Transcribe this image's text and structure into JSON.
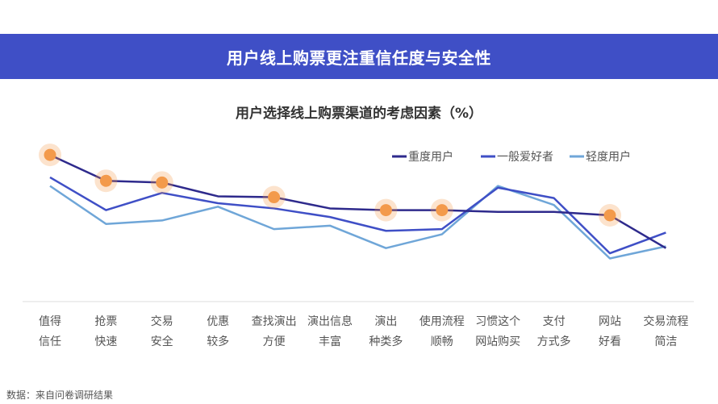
{
  "banner": {
    "title": "用户线上购票更注重信任度与安全性"
  },
  "source_note": "数据：来自问卷调研结果",
  "chart_data": {
    "type": "line",
    "title": "用户选择线上购票渠道的考虑因素（%）",
    "xlabel": "",
    "ylabel": "",
    "ylim": [
      0,
      100
    ],
    "grid": false,
    "legend": "top-right",
    "categories": [
      [
        "值得",
        "信任"
      ],
      [
        "抢票",
        "快速"
      ],
      [
        "交易",
        "安全"
      ],
      [
        "优惠",
        "较多"
      ],
      [
        "查找演出",
        "方便"
      ],
      [
        "演出信息",
        "丰富"
      ],
      [
        "演出",
        "种类多"
      ],
      [
        "使用流程",
        "顺畅"
      ],
      [
        "习惯这个",
        "网站购买"
      ],
      [
        "支付",
        "方式多"
      ],
      [
        "网站",
        "好看"
      ],
      [
        "交易流程",
        "简洁"
      ]
    ],
    "series": [
      {
        "name": "重度用户",
        "color": "#2e2a8c",
        "values": [
          85,
          70,
          69,
          61,
          60.5,
          54,
          53,
          53,
          52,
          52,
          50,
          31
        ],
        "highlighted": [
          0,
          1,
          2,
          4,
          6,
          7,
          10
        ]
      },
      {
        "name": "一般爱好者",
        "color": "#3f4fc6",
        "values": [
          72,
          53,
          63,
          57,
          54,
          49,
          41,
          42,
          66,
          60,
          28,
          40
        ]
      },
      {
        "name": "轻度用户",
        "color": "#6fa6d8",
        "values": [
          67,
          45,
          47,
          55,
          42,
          44,
          31,
          39,
          67,
          56,
          25,
          32
        ]
      }
    ],
    "highlight_color": "#f39a4b"
  }
}
